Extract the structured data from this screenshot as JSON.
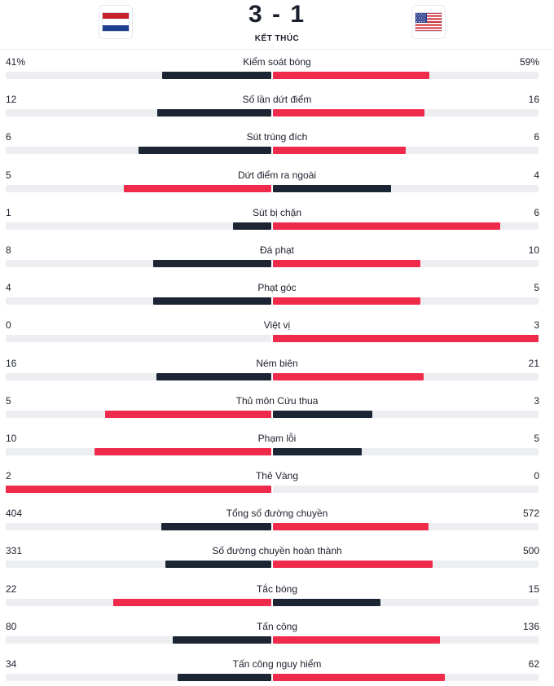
{
  "match": {
    "score": "3 - 1",
    "status": "KẾT THÚC",
    "home_flag": "netherlands-flag",
    "away_flag": "usa-flag"
  },
  "colors": {
    "leader": "#f02a4b",
    "trailer": "#1b2533",
    "track": "#eceef2"
  },
  "stats": [
    {
      "label": "Kiểm soát bóng",
      "home": "41%",
      "away": "59%",
      "home_share": 0.41,
      "away_share": 0.59
    },
    {
      "label": "Số lần dứt điểm",
      "home": "12",
      "away": "16",
      "home_share": 0.4286,
      "away_share": 0.5714
    },
    {
      "label": "Sút trúng đích",
      "home": "6",
      "away": "6",
      "home_share": 0.5,
      "away_share": 0.5
    },
    {
      "label": "Dứt điểm ra ngoài",
      "home": "5",
      "away": "4",
      "home_share": 0.5556,
      "away_share": 0.4444
    },
    {
      "label": "Sút bị chặn",
      "home": "1",
      "away": "6",
      "home_share": 0.1429,
      "away_share": 0.8571
    },
    {
      "label": "Đá phạt",
      "home": "8",
      "away": "10",
      "home_share": 0.4444,
      "away_share": 0.5556
    },
    {
      "label": "Phạt góc",
      "home": "4",
      "away": "5",
      "home_share": 0.4444,
      "away_share": 0.5556
    },
    {
      "label": "Việt vị",
      "home": "0",
      "away": "3",
      "home_share": 0,
      "away_share": 1
    },
    {
      "label": "Ném biên",
      "home": "16",
      "away": "21",
      "home_share": 0.4324,
      "away_share": 0.5676
    },
    {
      "label": "Thủ môn Cứu thua",
      "home": "5",
      "away": "3",
      "home_share": 0.625,
      "away_share": 0.375
    },
    {
      "label": "Phạm lỗi",
      "home": "10",
      "away": "5",
      "home_share": 0.6667,
      "away_share": 0.3333
    },
    {
      "label": "Thẻ Vàng",
      "home": "2",
      "away": "0",
      "home_share": 1,
      "away_share": 0
    },
    {
      "label": "Tổng số đường chuyền",
      "home": "404",
      "away": "572",
      "home_share": 0.414,
      "away_share": 0.586
    },
    {
      "label": "Số đường chuyền hoàn thành",
      "home": "331",
      "away": "500",
      "home_share": 0.3983,
      "away_share": 0.6017
    },
    {
      "label": "Tắc bóng",
      "home": "22",
      "away": "15",
      "home_share": 0.5946,
      "away_share": 0.4054
    },
    {
      "label": "Tấn công",
      "home": "80",
      "away": "136",
      "home_share": 0.3704,
      "away_share": 0.6296
    },
    {
      "label": "Tấn công nguy hiểm",
      "home": "34",
      "away": "62",
      "home_share": 0.3542,
      "away_share": 0.6458
    }
  ]
}
